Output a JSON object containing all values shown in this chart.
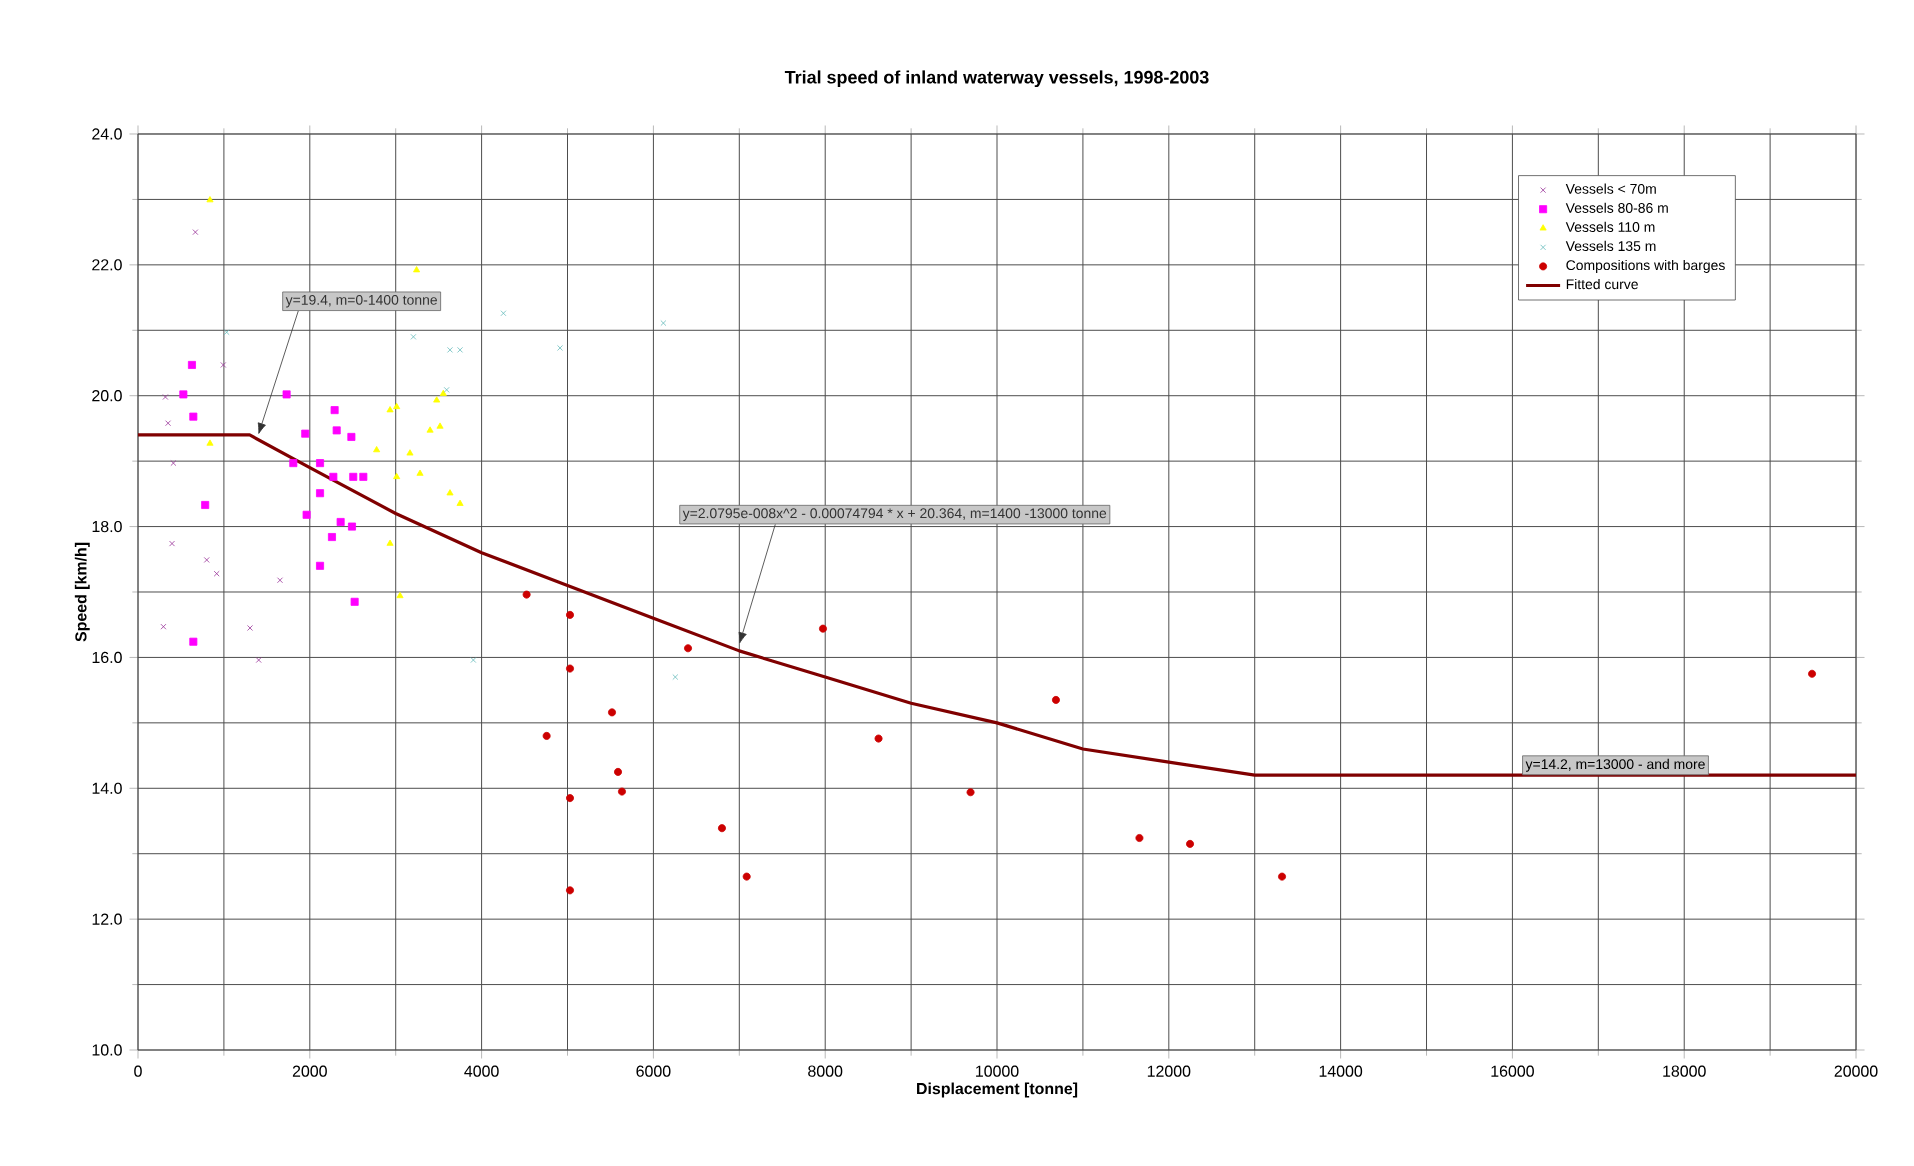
{
  "chart_data": {
    "type": "scatter",
    "title": "Trial speed of inland waterway vessels, 1998-2003",
    "xlabel": "Displacement [tonne]",
    "ylabel": "Speed [km/h]",
    "xlim": [
      0,
      20000
    ],
    "ylim": [
      10,
      24
    ],
    "xticks": [
      0,
      2000,
      4000,
      6000,
      8000,
      10000,
      12000,
      14000,
      16000,
      18000,
      20000
    ],
    "yticks": [
      {
        "value": 10,
        "label": "10.0"
      },
      {
        "value": 12,
        "label": "12.0"
      },
      {
        "value": 14,
        "label": "14.0"
      },
      {
        "value": 16,
        "label": "16.0"
      },
      {
        "value": 18,
        "label": "18.0"
      },
      {
        "value": 20,
        "label": "20.0"
      },
      {
        "value": 22,
        "label": "22.0"
      },
      {
        "value": 24,
        "label": "24.0"
      }
    ],
    "grid": true,
    "legend": "top right",
    "series": [
      {
        "name": "Vessels < 70m",
        "color": "#993399",
        "marker": "cross",
        "x": [
          993,
          319,
          350,
          412,
          396,
          800,
          916,
          1653,
          296,
          1304,
          1405,
          668
        ],
        "values": [
          20.47,
          19.98,
          19.58,
          18.97,
          17.74,
          17.49,
          17.28,
          17.18,
          16.47,
          16.45,
          15.96,
          22.5
        ]
      },
      {
        "name": "Vessels 80-86 m",
        "color": "#ff00ff",
        "marker": "square",
        "x": [
          628,
          528,
          644,
          1730,
          2289,
          2313,
          2484,
          1947,
          1808,
          2119,
          2274,
          2506,
          2623,
          2119,
          782,
          1963,
          2359,
          2491,
          2258,
          2119,
          2522,
          644
        ],
        "values": [
          20.47,
          20.02,
          19.68,
          20.02,
          19.78,
          19.47,
          19.37,
          19.42,
          18.97,
          18.97,
          18.76,
          18.76,
          18.76,
          18.51,
          18.33,
          18.18,
          18.07,
          18.0,
          17.84,
          17.4,
          16.85,
          16.24
        ]
      },
      {
        "name": "Vessels 110 m",
        "color": "#ffff00",
        "marker": "triangle",
        "x": [
          3243,
          2934,
          3477,
          3554,
          3400,
          3516,
          2778,
          3166,
          3283,
          3632,
          3749,
          3011,
          2934,
          3050,
          838,
          838,
          3011
        ],
        "values": [
          21.92,
          19.78,
          19.93,
          20.03,
          19.47,
          19.53,
          19.17,
          19.12,
          18.81,
          18.51,
          18.35,
          18.76,
          17.74,
          16.94,
          22.99,
          19.27,
          19.83
        ]
      },
      {
        "name": "Vessels 135 m",
        "color": "#66bbbb",
        "marker": "cross",
        "x": [
          4254,
          3206,
          3749,
          3632,
          4913,
          6116,
          3593,
          3904,
          6255,
          1032
        ],
        "values": [
          21.26,
          20.9,
          20.7,
          20.7,
          20.73,
          21.11,
          20.09,
          15.96,
          15.7,
          20.97
        ]
      },
      {
        "name": "Compositions with barges",
        "color": "#cc0000",
        "marker": "circle",
        "x": [
          4524,
          5029,
          5029,
          5518,
          4757,
          5588,
          5634,
          5029,
          5029,
          6403,
          7974,
          6798,
          7086,
          8621,
          10686,
          9692,
          11658,
          12247,
          13318,
          19488
        ],
        "values": [
          16.96,
          16.65,
          15.83,
          15.16,
          14.8,
          14.25,
          13.95,
          13.85,
          12.44,
          16.14,
          16.44,
          13.39,
          12.65,
          14.76,
          15.35,
          13.94,
          13.24,
          13.15,
          12.65,
          15.75
        ]
      },
      {
        "name": "Fitted curve",
        "type": "line",
        "color": "#800000",
        "marker": "none",
        "x": [
          0,
          1300,
          2000,
          3000,
          4000,
          5000,
          6000,
          7000,
          8000,
          9000,
          10000,
          11000,
          12000,
          13000,
          20000
        ],
        "values": [
          19.4,
          19.4,
          18.9,
          18.2,
          17.6,
          17.1,
          16.6,
          16.1,
          15.7,
          15.3,
          15.0,
          14.6,
          14.4,
          14.2,
          14.2
        ]
      }
    ],
    "annotations": [
      {
        "text": "y=19.4, m=0-1400 tonne",
        "x": 1400,
        "y": 19.4
      },
      {
        "text": "y=2.0795e-008x^2 - 0.00074794 * x + 20.364, m=1400 -13000 tonne",
        "x": 7000,
        "y": 16.2
      },
      {
        "text": "y=14.2, m=13000 - and more",
        "x": 17200,
        "y": 14.2
      }
    ]
  }
}
